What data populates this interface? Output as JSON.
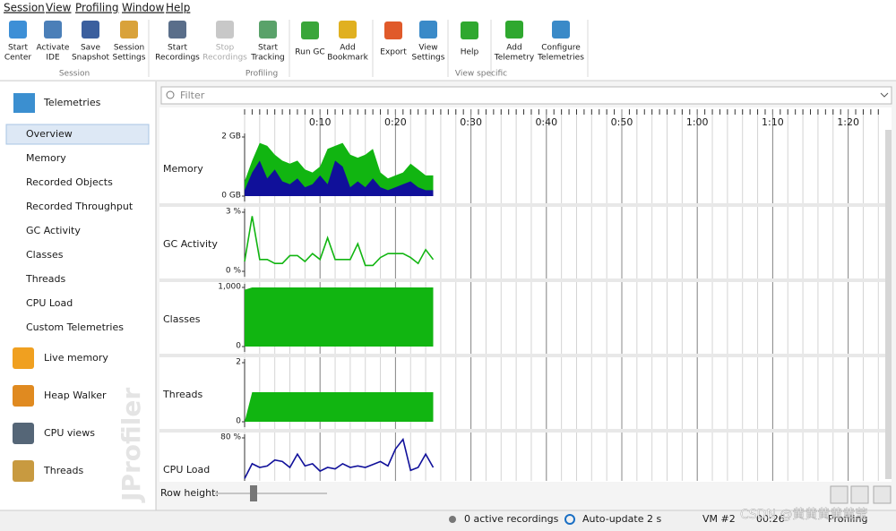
{
  "menu": [
    "Session",
    "View",
    "Profiling",
    "Window",
    "Help"
  ],
  "toolbar": [
    {
      "group": "Session",
      "buttons": [
        {
          "label": [
            "Start",
            "Center"
          ]
        },
        {
          "label": [
            "Activate",
            "IDE"
          ]
        },
        {
          "label": [
            "Save",
            "Snapshot"
          ]
        },
        {
          "label": [
            "Session",
            "Settings"
          ]
        }
      ]
    },
    {
      "group": "Profiling",
      "buttons": [
        {
          "label": [
            "Start",
            "Recordings"
          ]
        },
        {
          "label": [
            "Stop",
            "Recordings"
          ]
        },
        {
          "label": [
            "Start",
            "Tracking"
          ]
        },
        {
          "label": [
            "Run GC"
          ]
        },
        {
          "label": [
            "Add",
            "Bookmark"
          ]
        }
      ]
    },
    {
      "group": "View specific",
      "buttons": [
        {
          "label": [
            "Export"
          ]
        },
        {
          "label": [
            "View",
            "Settings"
          ]
        },
        {
          "label": [
            "Help"
          ]
        },
        {
          "label": [
            "Add",
            "Telemetry"
          ]
        },
        {
          "label": [
            "Configure",
            "Telemetries"
          ]
        }
      ]
    }
  ],
  "sidebar": {
    "heading": "Telemetries",
    "items": [
      "Overview",
      "Memory",
      "Recorded Objects",
      "Recorded Throughput",
      "GC Activity",
      "Classes",
      "Threads",
      "CPU Load",
      "Custom Telemetries"
    ],
    "selected": "Overview",
    "sections": [
      "Live memory",
      "Heap Walker",
      "CPU views",
      "Threads"
    ],
    "watermark": "JProfiler"
  },
  "filter": "Filter",
  "time_axis": {
    "ticks": [
      {
        "value": 10,
        "label": "0:10"
      },
      {
        "value": 20,
        "label": "0:20"
      },
      {
        "value": 30,
        "label": "0:30"
      },
      {
        "value": 40,
        "label": "0:40"
      },
      {
        "value": 50,
        "label": "0:50"
      },
      {
        "value": 60,
        "label": "1:00"
      },
      {
        "value": 70,
        "label": "1:10"
      },
      {
        "value": 80,
        "label": "1:20"
      }
    ]
  },
  "rows": [
    {
      "label": "Memory",
      "ylim": [
        0,
        2
      ],
      "yticks": [
        {
          "value": 2,
          "label": "2 GB"
        },
        {
          "value": 0,
          "label": "0 GB"
        }
      ],
      "series": [
        {
          "type": "area",
          "color": "#11b511",
          "values": [
            0.5,
            1.2,
            1.8,
            1.7,
            1.4,
            1.2,
            1.1,
            1.2,
            0.9,
            0.8,
            1.0,
            1.6,
            1.7,
            1.8,
            1.4,
            1.3,
            1.4,
            1.6,
            0.8,
            0.6,
            0.7,
            0.8,
            1.1,
            0.9,
            0.7,
            0.7
          ]
        },
        {
          "type": "area",
          "color": "#10109a",
          "values": [
            0.2,
            0.8,
            1.2,
            0.6,
            0.9,
            0.5,
            0.4,
            0.6,
            0.3,
            0.4,
            0.7,
            0.4,
            1.2,
            1.0,
            0.3,
            0.5,
            0.3,
            0.6,
            0.3,
            0.2,
            0.3,
            0.4,
            0.5,
            0.3,
            0.2,
            0.2
          ]
        }
      ]
    },
    {
      "label": "GC Activity",
      "ylim": [
        0,
        3
      ],
      "yticks": [
        {
          "value": 3,
          "label": "3 %"
        },
        {
          "value": 0,
          "label": "0 %"
        }
      ],
      "series": [
        {
          "type": "line",
          "color": "#11b511",
          "values": [
            0.5,
            2.8,
            0.6,
            0.6,
            0.4,
            0.4,
            0.8,
            0.8,
            0.5,
            0.9,
            0.6,
            1.7,
            0.6,
            0.6,
            0.6,
            1.4,
            0.3,
            0.3,
            0.7,
            0.9,
            0.9,
            0.9,
            0.7,
            0.4,
            1.1,
            0.6
          ]
        }
      ]
    },
    {
      "label": "Classes",
      "ylim": [
        0,
        1000
      ],
      "yticks": [
        {
          "value": 1000,
          "label": "1,000"
        },
        0
      ],
      "series": [
        {
          "type": "area",
          "color": "#11b511",
          "values": [
            960,
            1000,
            1000,
            1000,
            1000,
            1000,
            1000,
            1000,
            1000,
            1000,
            1000,
            1000,
            1000,
            1000,
            1000,
            1000,
            1000,
            1000,
            1000,
            1000,
            1000,
            1000,
            1000,
            1000,
            1000,
            1000
          ]
        }
      ]
    },
    {
      "label": "Threads",
      "ylim": [
        0,
        2
      ],
      "yticks": [
        2,
        0
      ],
      "series": [
        {
          "type": "area",
          "color": "#11b511",
          "values": [
            0,
            1,
            1,
            1,
            1,
            1,
            1,
            1,
            1,
            1,
            1,
            1,
            1,
            1,
            1,
            1,
            1,
            1,
            1,
            1,
            1,
            1,
            1,
            1,
            1,
            1
          ]
        }
      ]
    },
    {
      "label": "CPU Load",
      "ylim": [
        0,
        80
      ],
      "yticks": [
        {
          "value": 80,
          "label": "80 %"
        }
      ],
      "series": [
        {
          "type": "line",
          "color": "#10109a",
          "values": [
            25,
            45,
            40,
            42,
            50,
            48,
            40,
            58,
            42,
            45,
            35,
            40,
            38,
            45,
            40,
            42,
            40,
            44,
            48,
            42,
            65,
            78,
            36,
            40,
            58,
            40
          ]
        }
      ]
    }
  ],
  "row_height": "Row height:",
  "status": {
    "recordings": "0 active recordings",
    "auto_update": "Auto-update 2 s",
    "vm": "VM #2",
    "time": "00:26",
    "state": "Profiling"
  },
  "watermark": "CSDN @黄黄黄黄黄莹"
}
